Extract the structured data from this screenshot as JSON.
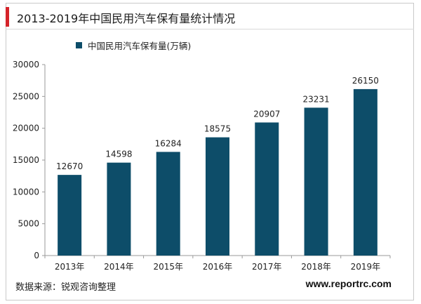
{
  "header": {
    "title": "2013-2019年中国民用汽车保有量统计情况"
  },
  "footer": {
    "source": "数据来源：锐观咨询整理",
    "website": "www.reportrc.com"
  },
  "colors": {
    "bar": "#0d4d69",
    "accent": "#d5232a"
  },
  "chart_data": {
    "type": "bar",
    "categories": [
      "2013年",
      "2014年",
      "2015年",
      "2016年",
      "2017年",
      "2018年",
      "2019年"
    ],
    "series": [
      {
        "name": "中国民用汽车保有量(万辆)",
        "values": [
          12670,
          14598,
          16284,
          18575,
          20907,
          23231,
          26150
        ]
      }
    ],
    "title": "2013-2019年中国民用汽车保有量统计情况",
    "xlabel": "",
    "ylabel": "",
    "ylim": [
      0,
      30000
    ],
    "yticks": [
      0,
      5000,
      10000,
      15000,
      20000,
      25000,
      30000
    ],
    "grid": false,
    "legend_position": "top-left",
    "data_labels": true
  }
}
